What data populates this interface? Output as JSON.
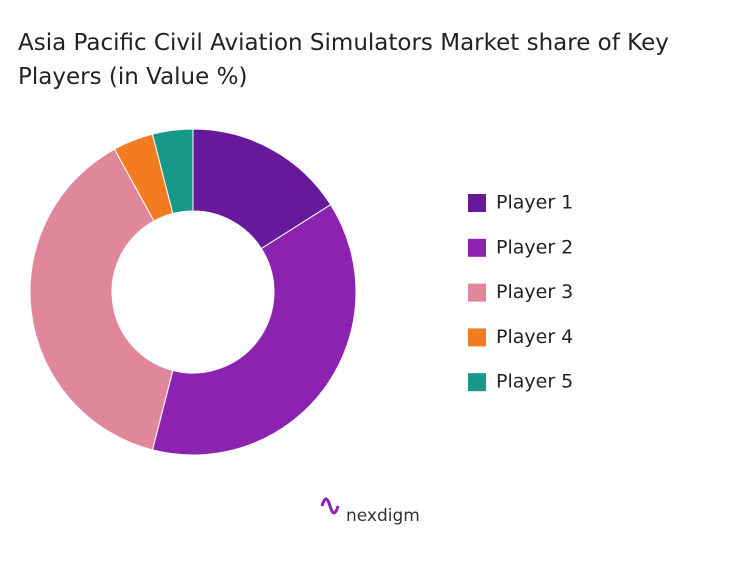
{
  "chart_data": {
    "type": "donut",
    "title": "Asia Pacific Civil Aviation Simulators Market share of Key Players (in Value %)",
    "categories": [
      "Player 1",
      "Player 2",
      "Player 3",
      "Player 4",
      "Player 5"
    ],
    "values": [
      16,
      38,
      38,
      4,
      4
    ],
    "colors": [
      "#661a9b",
      "#8b22b0",
      "#e0879c",
      "#f47c20",
      "#17998a"
    ],
    "legend": "right",
    "logo": "nexdigm"
  }
}
